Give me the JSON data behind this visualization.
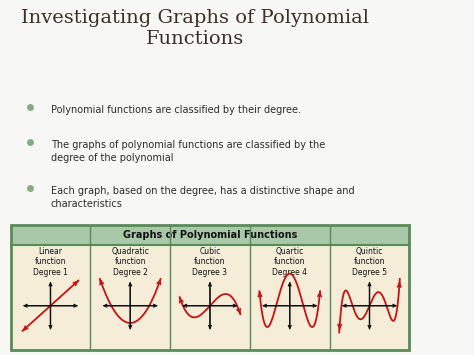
{
  "title": "Investigating Graphs of Polynomial\nFunctions",
  "bullets": [
    "Polynomial functions are classified by their degree.",
    "The graphs of polynomial functions are classified by the\ndegree of the polynomial",
    "Each graph, based on the degree, has a distinctive shape and\ncharacteristics"
  ],
  "table_title": "Graphs of Polynomial Functions",
  "columns": [
    {
      "label": "Linear\nfunction\nDegree 1"
    },
    {
      "label": "Quadratic\nfunction\nDegree 2"
    },
    {
      "label": "Cubic\nfunction\nDegree 3"
    },
    {
      "label": "Quartic\nfunction\nDegree 4"
    },
    {
      "label": "Quintic\nfunction\nDegree 5"
    }
  ],
  "bg_color": "#f7f7f5",
  "slide_bg": "#e8e4dc",
  "table_header_color": "#a8c8a8",
  "table_cell_color": "#f5edd8",
  "table_border_color": "#5a8a5a",
  "title_color": "#3a3028",
  "bullet_color": "#2c2c2c",
  "curve_color": "#cc1111",
  "axis_color": "#111111",
  "bullet_dot_color": "#8aaa88",
  "right_bar_color": "#8b7a5a",
  "right_bar2_color": "#6a5a40"
}
